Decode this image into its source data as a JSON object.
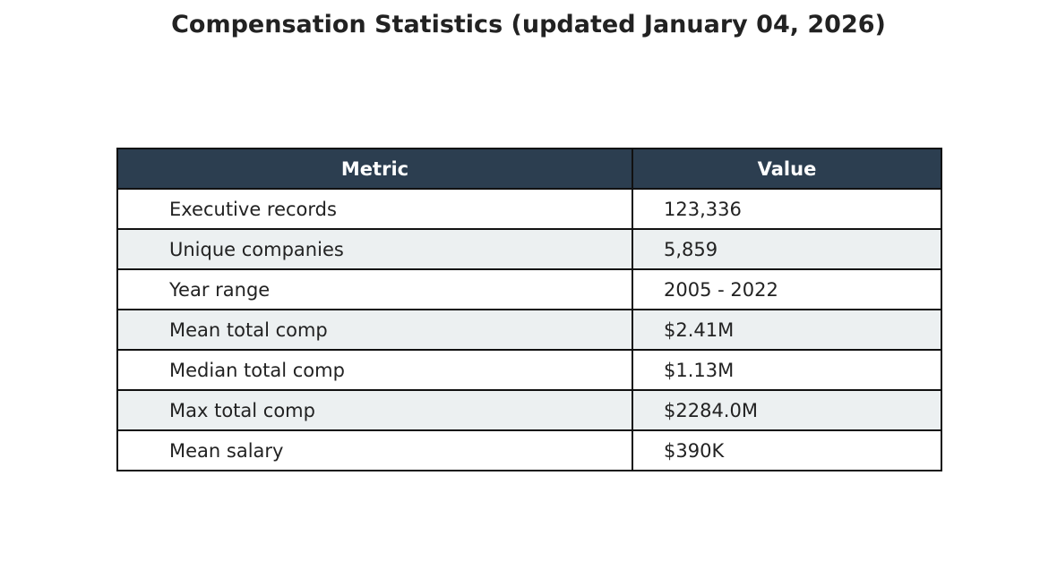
{
  "chart_data": {
    "type": "table",
    "title": "Compensation Statistics (updated January 04, 2026)",
    "columns": [
      "Metric",
      "Value"
    ],
    "rows": [
      [
        "Executive records",
        "123,336"
      ],
      [
        "Unique companies",
        "5,859"
      ],
      [
        "Year range",
        "2005 - 2022"
      ],
      [
        "Mean total comp",
        "$2.41M"
      ],
      [
        "Median total comp",
        "$1.13M"
      ],
      [
        "Max total comp",
        "$2284.0M"
      ],
      [
        "Mean salary",
        "$390K"
      ]
    ],
    "colors": {
      "header_background": "#2c3e50",
      "header_text": "#ffffff",
      "alternate_row": "#ecf0f1",
      "row": "#ffffff",
      "border": "#111111",
      "text": "#222222"
    }
  }
}
